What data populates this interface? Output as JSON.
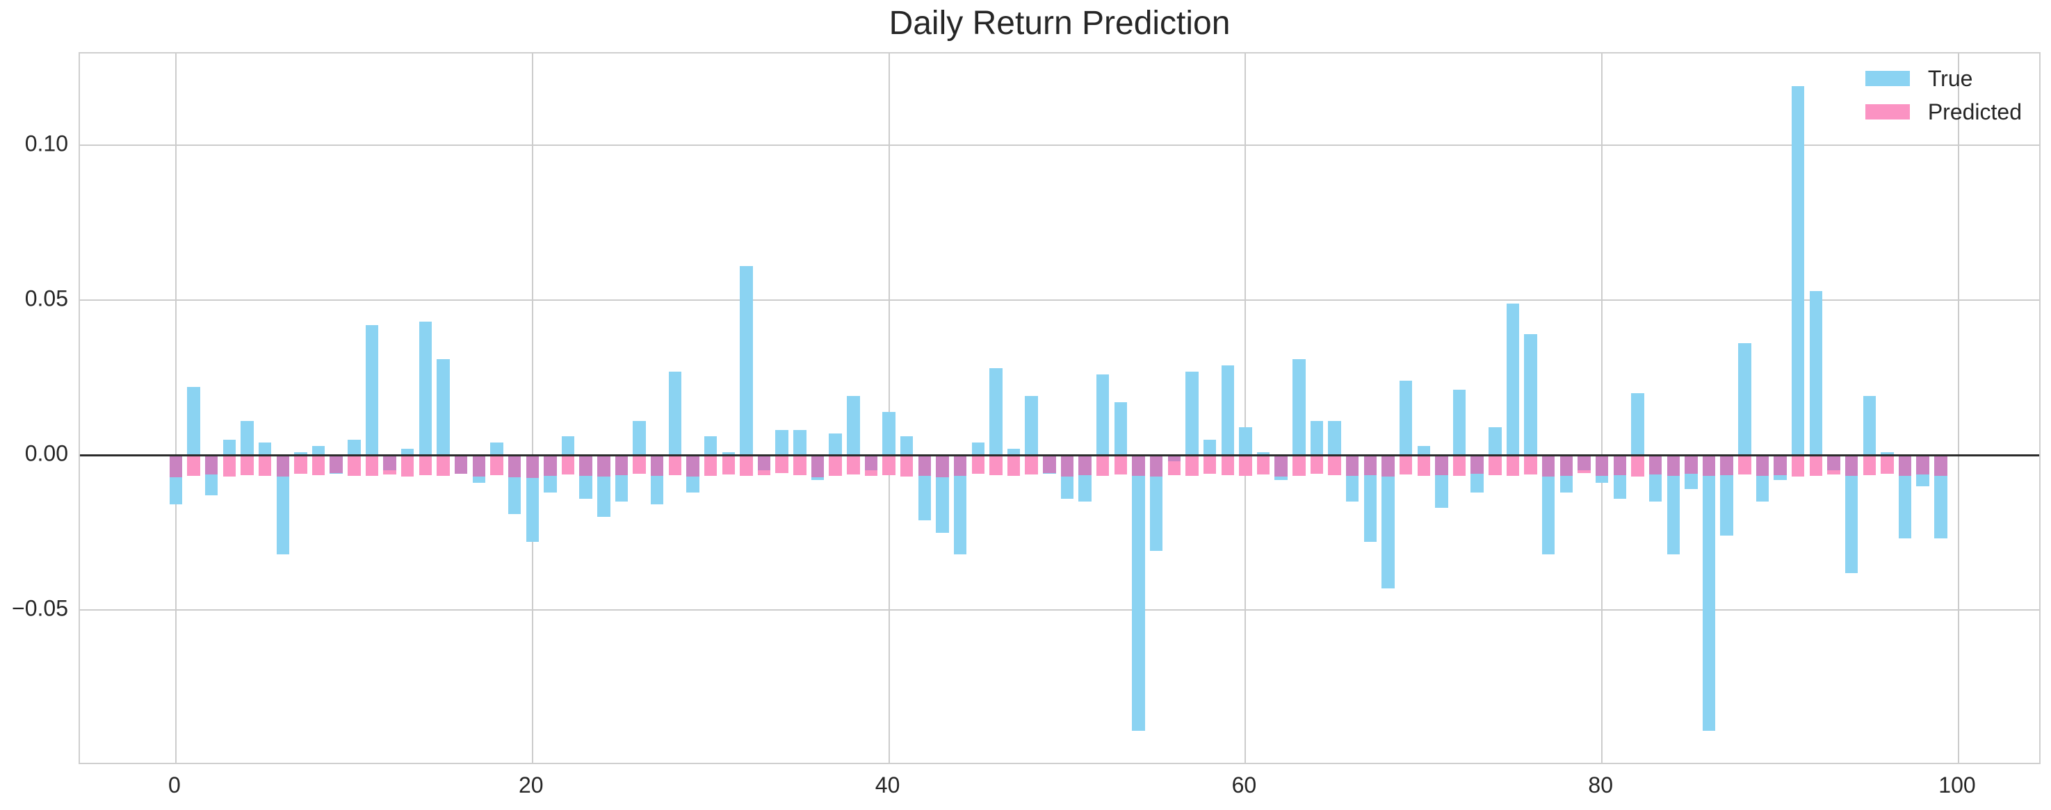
{
  "title": "Daily Return Prediction",
  "legend": {
    "items": [
      {
        "label": "True",
        "color": "#8BD3F2"
      },
      {
        "label": "Predicted",
        "color": "#FB93C3"
      }
    ]
  },
  "colors": {
    "true_bar": "#8BD3F2",
    "predicted_bar": "#FB93C3",
    "overlap_bar": "#C983C1",
    "grid": "#cccccc",
    "spine": "#cfcfcf",
    "zero_line": "#2b2b2b",
    "text": "#262626",
    "background": "#ffffff"
  },
  "chart_data": {
    "type": "bar",
    "title": "Daily Return Prediction",
    "xlabel": "",
    "ylabel": "",
    "grid": true,
    "legend_position": "upper right",
    "zero_line": true,
    "xlim": [
      -5.38,
      104.68
    ],
    "ylim": [
      -0.1002,
      0.1296
    ],
    "bar_width_fraction": 0.72,
    "xticks": {
      "values": [
        0,
        20,
        40,
        60,
        80,
        100
      ],
      "labels": [
        "0",
        "20",
        "40",
        "60",
        "80",
        "100"
      ]
    },
    "yticks": {
      "values": [
        0.1,
        0.05,
        0.0,
        -0.05
      ],
      "labels": [
        "0.10",
        "0.05",
        "0.00",
        "−0.05"
      ]
    },
    "x": [
      0,
      1,
      2,
      3,
      4,
      5,
      6,
      7,
      8,
      9,
      10,
      11,
      12,
      13,
      14,
      15,
      16,
      17,
      18,
      19,
      20,
      21,
      22,
      23,
      24,
      25,
      26,
      27,
      28,
      29,
      30,
      31,
      32,
      33,
      34,
      35,
      36,
      37,
      38,
      39,
      40,
      41,
      42,
      43,
      44,
      45,
      46,
      47,
      48,
      49,
      50,
      51,
      52,
      53,
      54,
      55,
      56,
      57,
      58,
      59,
      60,
      61,
      62,
      63,
      64,
      65,
      66,
      67,
      68,
      69,
      70,
      71,
      72,
      73,
      74,
      75,
      76,
      77,
      78,
      79,
      80,
      81,
      82,
      83,
      84,
      85,
      86,
      87,
      88,
      89,
      90,
      91,
      92,
      93,
      94,
      95,
      96,
      97,
      98,
      99
    ],
    "series": [
      {
        "name": "True",
        "color": "#8BD3F2",
        "values": [
          -0.016,
          0.022,
          -0.013,
          0.005,
          0.011,
          0.004,
          -0.032,
          0.001,
          0.003,
          -0.006,
          0.005,
          0.042,
          -0.005,
          0.002,
          0.043,
          0.031,
          -0.006,
          -0.009,
          0.004,
          -0.019,
          -0.028,
          -0.012,
          0.006,
          -0.014,
          -0.02,
          -0.015,
          0.011,
          -0.016,
          0.027,
          -0.012,
          0.006,
          0.001,
          0.061,
          -0.005,
          0.008,
          0.008,
          -0.008,
          0.007,
          0.019,
          -0.005,
          0.014,
          0.006,
          -0.021,
          -0.025,
          -0.032,
          0.004,
          0.028,
          0.002,
          0.019,
          -0.006,
          -0.014,
          -0.015,
          0.026,
          0.017,
          -0.089,
          -0.031,
          -0.002,
          0.027,
          0.005,
          0.029,
          0.009,
          0.001,
          -0.008,
          0.031,
          0.011,
          0.011,
          -0.015,
          -0.028,
          -0.043,
          0.024,
          0.003,
          -0.017,
          0.021,
          -0.012,
          0.009,
          0.049,
          0.039,
          -0.032,
          -0.012,
          -0.005,
          -0.009,
          -0.014,
          0.02,
          -0.015,
          -0.032,
          -0.011,
          -0.089,
          -0.026,
          0.036,
          -0.015,
          -0.008,
          0.119,
          0.053,
          -0.005,
          -0.038,
          0.019,
          0.001,
          -0.027,
          -0.01,
          -0.027
        ]
      },
      {
        "name": "Predicted",
        "color": "#FB93C3",
        "overlap_color": "#C983C1",
        "values": [
          -0.0071,
          -0.0067,
          -0.0062,
          -0.0069,
          -0.0064,
          -0.0066,
          -0.007,
          -0.0061,
          -0.0065,
          -0.0059,
          -0.0068,
          -0.0066,
          -0.0063,
          -0.007,
          -0.0065,
          -0.0067,
          -0.006,
          -0.0069,
          -0.0064,
          -0.0072,
          -0.0074,
          -0.0068,
          -0.0063,
          -0.0066,
          -0.007,
          -0.0065,
          -0.0061,
          -0.0067,
          -0.0064,
          -0.0069,
          -0.0066,
          -0.0062,
          -0.0068,
          -0.0065,
          -0.0059,
          -0.0064,
          -0.0071,
          -0.0066,
          -0.0063,
          -0.0067,
          -0.0065,
          -0.007,
          -0.0068,
          -0.0072,
          -0.0066,
          -0.0061,
          -0.0064,
          -0.0067,
          -0.0063,
          -0.0058,
          -0.0069,
          -0.0065,
          -0.0067,
          -0.0062,
          -0.0066,
          -0.007,
          -0.0064,
          -0.0068,
          -0.0061,
          -0.0065,
          -0.0067,
          -0.0063,
          -0.0069,
          -0.0066,
          -0.006,
          -0.0064,
          -0.0068,
          -0.0065,
          -0.007,
          -0.0062,
          -0.0066,
          -0.0064,
          -0.0067,
          -0.0061,
          -0.0065,
          -0.0068,
          -0.0063,
          -0.007,
          -0.0066,
          -0.0059,
          -0.0067,
          -0.0064,
          -0.0069,
          -0.0062,
          -0.0066,
          -0.0061,
          -0.0068,
          -0.0065,
          -0.0063,
          -0.0067,
          -0.0064,
          -0.007,
          -0.0066,
          -0.0062,
          -0.0068,
          -0.0065,
          -0.0061,
          -0.0067,
          -0.0063,
          -0.0066
        ]
      }
    ]
  }
}
